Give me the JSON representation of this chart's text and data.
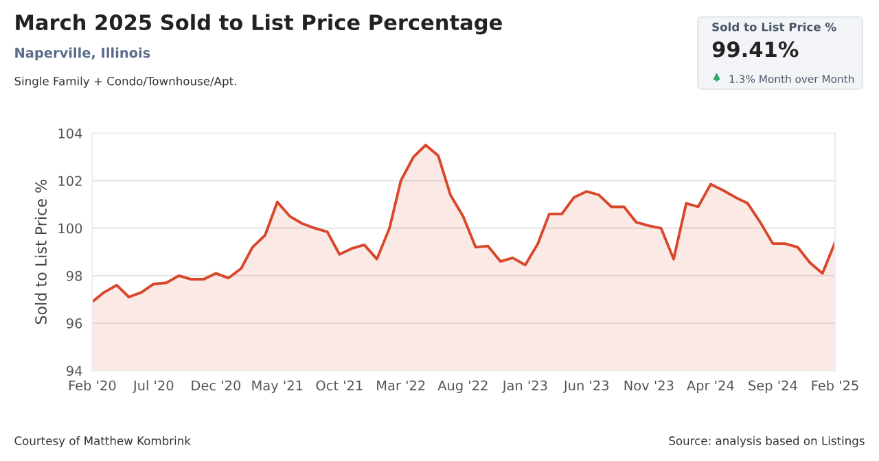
{
  "chart_data": [
    {
      "type": "area",
      "title": "March 2025 Sold to List Price Percentage",
      "subtitle": "Naperville, Illinois",
      "ylabel": "Sold to List Price %",
      "annotations": [
        "Single Family + Condo/Townhouse/Apt.",
        "Courtesy of Matthew Kombrink",
        "Source: analysis based on Listings"
      ],
      "x": [
        "2020-02",
        "2020-03",
        "2020-04",
        "2020-05",
        "2020-06",
        "2020-07",
        "2020-08",
        "2020-09",
        "2020-10",
        "2020-11",
        "2020-12",
        "2021-01",
        "2021-02",
        "2021-03",
        "2021-04",
        "2021-05",
        "2021-06",
        "2021-07",
        "2021-08",
        "2021-09",
        "2021-10",
        "2021-11",
        "2021-12",
        "2022-01",
        "2022-02",
        "2022-03",
        "2022-04",
        "2022-05",
        "2022-06",
        "2022-07",
        "2022-08",
        "2022-09",
        "2022-10",
        "2022-11",
        "2022-12",
        "2023-01",
        "2023-02",
        "2023-03",
        "2023-04",
        "2023-05",
        "2023-06",
        "2023-07",
        "2023-08",
        "2023-09",
        "2023-10",
        "2023-11",
        "2023-12",
        "2024-01",
        "2024-02",
        "2024-03",
        "2024-04",
        "2024-05",
        "2024-06",
        "2024-07",
        "2024-08",
        "2024-09",
        "2024-10",
        "2024-11",
        "2024-12",
        "2025-01",
        "2025-02"
      ],
      "series": [
        {
          "color": "#d9472b",
          "values": [
            96.9,
            97.3,
            97.6,
            97.1,
            97.3,
            97.65,
            97.7,
            98.0,
            97.85,
            97.85,
            98.1,
            97.9,
            98.3,
            99.2,
            99.7,
            101.1,
            100.5,
            100.2,
            100.0,
            99.85,
            98.9,
            99.15,
            99.3,
            98.7,
            100.0,
            102.0,
            103.0,
            103.5,
            103.05,
            101.4,
            100.5,
            99.2,
            99.25,
            98.6,
            98.75,
            98.45,
            99.35,
            100.6,
            100.6,
            101.3,
            101.55,
            101.4,
            100.9,
            100.9,
            100.25,
            100.1,
            100.0,
            98.7,
            101.05,
            100.9,
            101.85,
            101.6,
            101.3,
            101.05,
            100.25,
            99.35,
            99.35,
            99.2,
            98.55,
            98.1,
            99.4
          ]
        }
      ],
      "xlim": [
        "2020-02",
        "2025-02"
      ],
      "xticks": [
        {
          "value": "2020-02",
          "label": "Feb '20"
        },
        {
          "value": "2020-07",
          "label": "Jul '20"
        },
        {
          "value": "2020-12",
          "label": "Dec '20"
        },
        {
          "value": "2021-05",
          "label": "May '21"
        },
        {
          "value": "2021-10",
          "label": "Oct '21"
        },
        {
          "value": "2022-03",
          "label": "Mar '22"
        },
        {
          "value": "2022-08",
          "label": "Aug '22"
        },
        {
          "value": "2023-01",
          "label": "Jan '23"
        },
        {
          "value": "2023-06",
          "label": "Jun '23"
        },
        {
          "value": "2023-11",
          "label": "Nov '23"
        },
        {
          "value": "2024-04",
          "label": "Apr '24"
        },
        {
          "value": "2024-09",
          "label": "Sep '24"
        },
        {
          "value": "2025-02",
          "label": "Feb '25"
        }
      ],
      "ylim": [
        94,
        104
      ],
      "yticks": [
        94,
        96,
        98,
        100,
        102,
        104
      ],
      "grid": "y",
      "marker": "none",
      "line_style": "solid",
      "legend": false
    },
    {
      "type": "other",
      "title": "Sold to List Price %",
      "annotations": [
        "99.41%",
        "1.3% Month over Month"
      ]
    }
  ]
}
